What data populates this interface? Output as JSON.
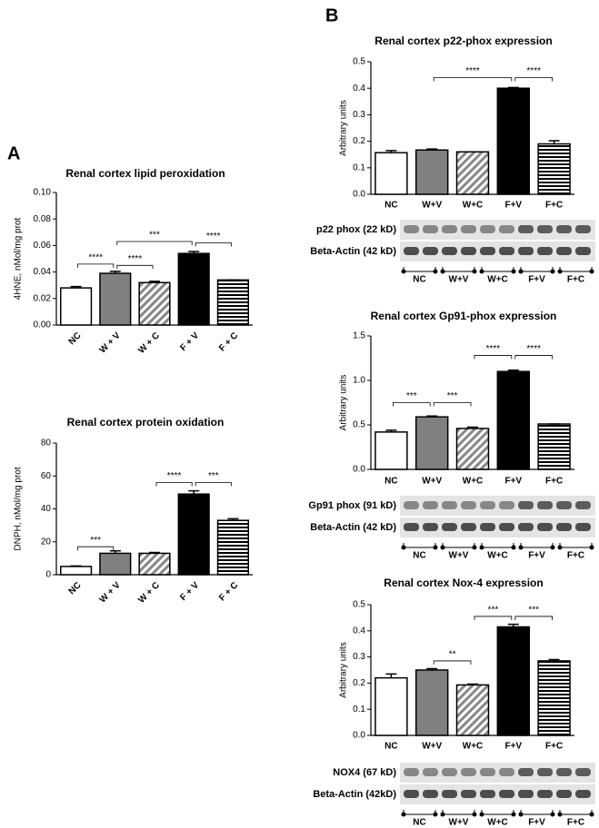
{
  "panel_labels": [
    "A",
    "B"
  ],
  "chart_data": [
    {
      "type": "bar",
      "title": "Renal cortex lipid peroxidation",
      "ylabel": "4HNE, nMol/mg prot",
      "categories": [
        "NC",
        "W + V",
        "W + C",
        "F + V",
        "F + C"
      ],
      "values": [
        0.028,
        0.039,
        0.032,
        0.054,
        0.034
      ],
      "errors": [
        0.001,
        0.0015,
        0.001,
        0.0015,
        0
      ],
      "colors": [
        "#ffffff",
        "#808080",
        "#ffffff",
        "#000000",
        "#ffffff"
      ],
      "patterns": [
        "solid",
        "solid",
        "diagonal",
        "solid",
        "horizontal"
      ],
      "ylim": [
        0,
        0.1
      ],
      "yticks": [
        {
          "value": 0,
          "label": "0.00"
        },
        {
          "value": 0.02,
          "label": "0.02"
        },
        {
          "value": 0.04,
          "label": "0.04"
        },
        {
          "value": 0.06,
          "label": "0.06"
        },
        {
          "value": 0.08,
          "label": "0.08"
        },
        {
          "value": 0.1,
          "label": "0.10"
        }
      ],
      "annotations": [
        {
          "text": "****",
          "between": [
            "NC",
            "W + V"
          ],
          "y": 0.046
        },
        {
          "text": "****",
          "between": [
            "W + V",
            "W + C"
          ],
          "y": 0.045
        },
        {
          "text": "***",
          "between": [
            "W + V",
            "F + V"
          ],
          "y": 0.063
        },
        {
          "text": "****",
          "between": [
            "F + V",
            "F + C"
          ],
          "y": 0.062
        }
      ]
    },
    {
      "type": "bar",
      "title": "Renal cortex protein oxidation",
      "ylabel": "DNPH, nMol/mg prot",
      "categories": [
        "NC",
        "W + V",
        "W + C",
        "F + V",
        "F + C"
      ],
      "values": [
        5,
        13,
        13,
        49,
        33
      ],
      "errors": [
        0.3,
        1.5,
        0.5,
        2,
        1
      ],
      "colors": [
        "#ffffff",
        "#808080",
        "#ffffff",
        "#000000",
        "#ffffff"
      ],
      "patterns": [
        "solid",
        "solid",
        "diagonal",
        "solid",
        "horizontal"
      ],
      "ylim": [
        0,
        80
      ],
      "yticks": [
        0,
        20,
        40,
        60,
        80
      ],
      "annotations": [
        {
          "text": "***",
          "between": [
            "NC",
            "W + V"
          ],
          "y": 17
        },
        {
          "text": "****",
          "between": [
            "W + C",
            "F + V"
          ],
          "y": 56
        },
        {
          "text": "***",
          "between": [
            "F + V",
            "F + C"
          ],
          "y": 56
        }
      ]
    },
    {
      "type": "bar",
      "title": "Renal cortex p22-phox expression",
      "ylabel": "Arbitrary units",
      "categories": [
        "NC",
        "W+V",
        "W+C",
        "F+V",
        "F+C"
      ],
      "values": [
        0.157,
        0.167,
        0.16,
        0.4,
        0.19
      ],
      "errors": [
        0.008,
        0.004,
        0,
        0.003,
        0.012
      ],
      "colors": [
        "#ffffff",
        "#808080",
        "#ffffff",
        "#000000",
        "#ffffff"
      ],
      "patterns": [
        "solid",
        "solid",
        "diagonal",
        "solid",
        "horizontal"
      ],
      "ylim": [
        0,
        0.5
      ],
      "yticks": [
        {
          "value": 0,
          "label": "0.0"
        },
        0.1,
        0.2,
        0.3,
        0.4,
        0.5
      ],
      "annotations": [
        {
          "text": "****",
          "between": [
            "W+V",
            "F+V"
          ],
          "y": 0.44
        },
        {
          "text": "****",
          "between": [
            "F+V",
            "F+C"
          ],
          "y": 0.44
        }
      ],
      "blot_rows": [
        "p22 phox (22 kD)",
        "Beta-Actin (42 kD)"
      ],
      "blot_lanes": [
        "NC",
        "W+V",
        "W+C",
        "F+V",
        "F+C"
      ]
    },
    {
      "type": "bar",
      "title": "Renal cortex Gp91-phox expression",
      "ylabel": "Arbitrary units",
      "categories": [
        "NC",
        "W+V",
        "W+C",
        "F+V",
        "F+C"
      ],
      "values": [
        0.42,
        0.59,
        0.46,
        1.1,
        0.51
      ],
      "errors": [
        0.02,
        0.01,
        0.015,
        0.015,
        0
      ],
      "colors": [
        "#ffffff",
        "#808080",
        "#ffffff",
        "#000000",
        "#ffffff"
      ],
      "patterns": [
        "solid",
        "solid",
        "diagonal",
        "solid",
        "horizontal"
      ],
      "ylim": [
        0,
        1.5
      ],
      "yticks": [
        {
          "value": 0,
          "label": "0.0"
        },
        0.5,
        {
          "value": 1,
          "label": "1.0"
        },
        1.5
      ],
      "annotations": [
        {
          "text": "***",
          "between": [
            "NC",
            "W+V"
          ],
          "y": 0.75
        },
        {
          "text": "***",
          "between": [
            "W+V",
            "W+C"
          ],
          "y": 0.75
        },
        {
          "text": "****",
          "between": [
            "W+C",
            "F+V"
          ],
          "y": 1.28
        },
        {
          "text": "****",
          "between": [
            "F+V",
            "F+C"
          ],
          "y": 1.28
        }
      ],
      "blot_rows": [
        "Gp91 phox (91 kD)",
        "Beta-Actin (42 kD)"
      ],
      "blot_lanes": [
        "NC",
        "W+V",
        "W+C",
        "F+V",
        "F+C"
      ]
    },
    {
      "type": "bar",
      "title": "Renal cortex Nox-4 expression",
      "ylabel": "Arbitrary units",
      "categories": [
        "NC",
        "W+V",
        "W+C",
        "F+V",
        "F+C"
      ],
      "values": [
        0.22,
        0.25,
        0.193,
        0.415,
        0.285
      ],
      "errors": [
        0.015,
        0.005,
        0.003,
        0.01,
        0.005
      ],
      "colors": [
        "#ffffff",
        "#808080",
        "#ffffff",
        "#000000",
        "#ffffff"
      ],
      "patterns": [
        "solid",
        "solid",
        "diagonal",
        "solid",
        "horizontal"
      ],
      "ylim": [
        0,
        0.5
      ],
      "yticks": [
        {
          "value": 0,
          "label": "0.0"
        },
        0.1,
        0.2,
        0.3,
        0.4,
        0.5
      ],
      "annotations": [
        {
          "text": "**",
          "between": [
            "W+V",
            "W+C"
          ],
          "y": 0.285
        },
        {
          "text": "***",
          "between": [
            "W+C",
            "F+V"
          ],
          "y": 0.455
        },
        {
          "text": "***",
          "between": [
            "F+V",
            "F+C"
          ],
          "y": 0.455
        }
      ],
      "blot_rows": [
        "NOX4 (67 kD)",
        "Beta-Actin (42kD)"
      ],
      "blot_lanes": [
        "NC",
        "W+V",
        "W+C",
        "F+V",
        "F+C"
      ]
    }
  ]
}
